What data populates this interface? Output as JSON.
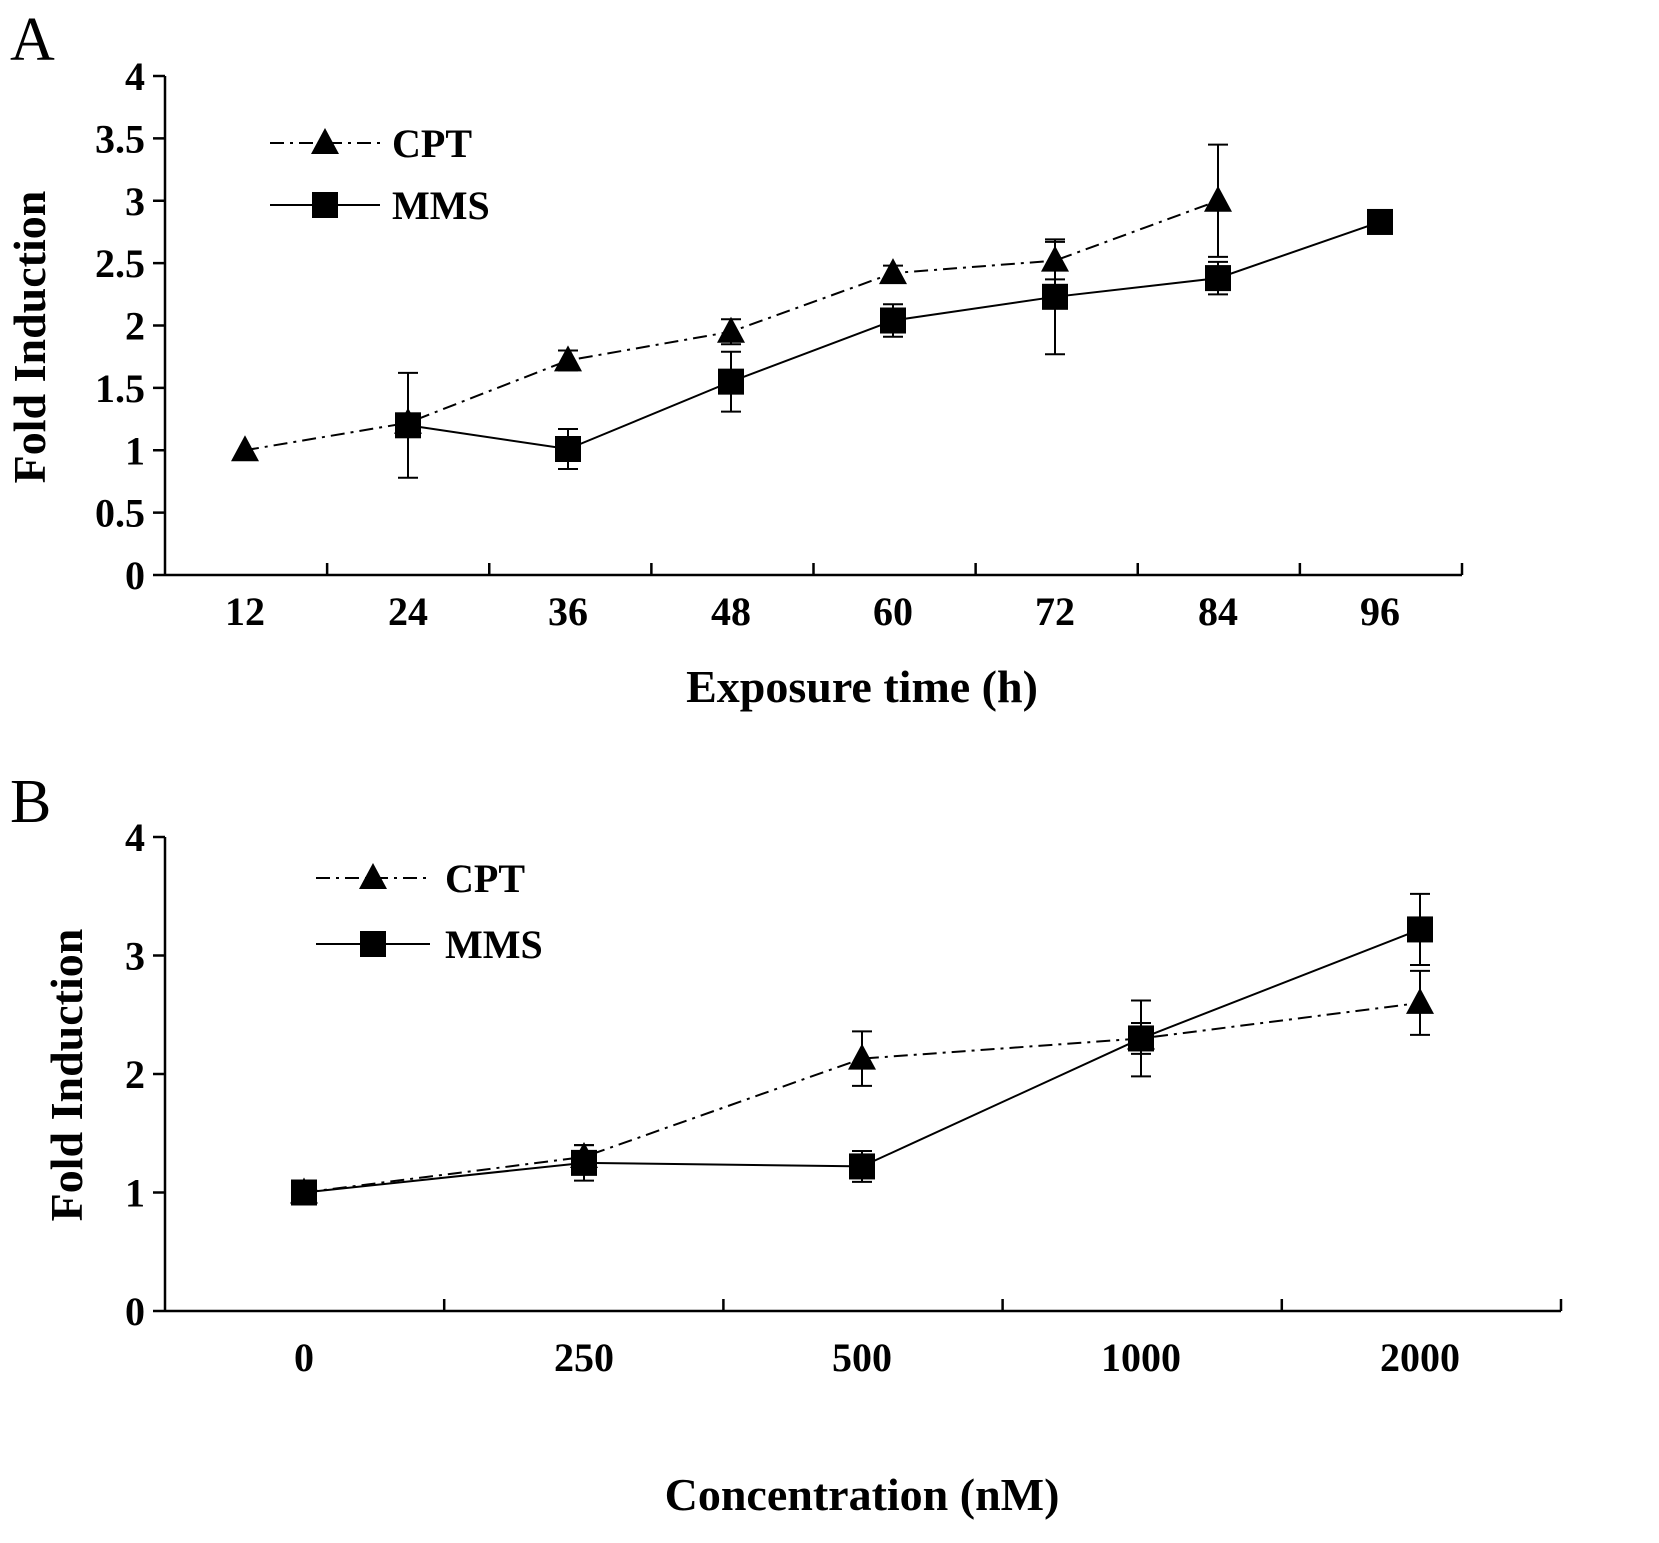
{
  "chart_data": [
    {
      "panel": "A",
      "type": "line",
      "xlabel": "Exposure time (h)",
      "ylabel": "Fold Induction",
      "categories": [
        "12",
        "24",
        "36",
        "48",
        "60",
        "72",
        "84",
        "96"
      ],
      "ylim": [
        0,
        4
      ],
      "yticks": [
        "0",
        "0.5",
        "1",
        "1.5",
        "2",
        "2.5",
        "3",
        "3.5",
        "4"
      ],
      "grid": false,
      "legend_position": "top-left",
      "series": [
        {
          "name": "CPT",
          "marker": "triangle",
          "line_style": "dash-dot",
          "values": [
            1.0,
            1.22,
            1.72,
            1.95,
            2.42,
            2.52,
            3.0,
            null
          ],
          "errors": [
            0,
            0,
            0.08,
            0.1,
            0.06,
            0.15,
            0.45,
            null
          ]
        },
        {
          "name": "MMS",
          "marker": "square",
          "line_style": "solid",
          "values": [
            null,
            1.2,
            1.01,
            1.55,
            2.04,
            2.23,
            2.38,
            2.83
          ],
          "errors": [
            null,
            0.42,
            0.16,
            0.24,
            0.13,
            0.46,
            0.13,
            0
          ]
        }
      ]
    },
    {
      "panel": "B",
      "type": "line",
      "xlabel": "Concentration (nM)",
      "ylabel": "Fold Induction",
      "categories": [
        "0",
        "250",
        "500",
        "1000",
        "2000"
      ],
      "ylim": [
        0,
        4
      ],
      "yticks": [
        "0",
        "1",
        "2",
        "3",
        "4"
      ],
      "grid": false,
      "legend_position": "top-left",
      "series": [
        {
          "name": "CPT",
          "marker": "triangle",
          "line_style": "dash-dot",
          "values": [
            1.0,
            1.3,
            2.13,
            2.3,
            2.6
          ],
          "errors": [
            0,
            0.1,
            0.23,
            0.13,
            0.27
          ]
        },
        {
          "name": "MMS",
          "marker": "square",
          "line_style": "solid",
          "values": [
            1.0,
            1.25,
            1.22,
            2.3,
            3.22
          ],
          "errors": [
            0,
            0.15,
            0.13,
            0.32,
            0.3
          ]
        }
      ]
    }
  ]
}
